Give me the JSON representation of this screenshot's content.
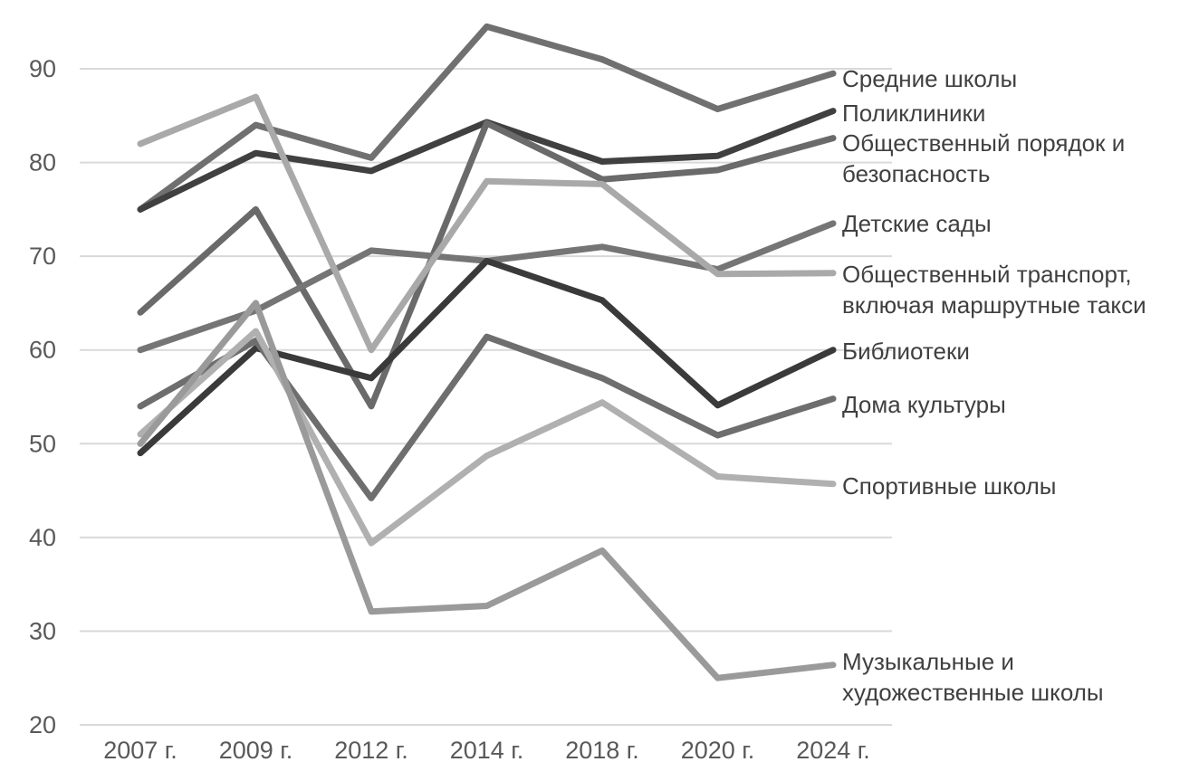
{
  "chart_data": {
    "type": "line",
    "title": "",
    "xlabel": "",
    "ylabel": "",
    "categories": [
      "2007 г.",
      "2009 г.",
      "2012 г.",
      "2014 г.",
      "2018 г.",
      "2020 г.",
      "2024 г."
    ],
    "ylim": [
      20,
      95
    ],
    "yticks": [
      20,
      30,
      40,
      50,
      60,
      70,
      80,
      90
    ],
    "grid": true,
    "legend": "right, labels at line ends",
    "series": [
      {
        "name": "Средние школы",
        "values": [
          75,
          84,
          80.5,
          94.5,
          91,
          85.7,
          89.5
        ],
        "color": "#707070",
        "label_lines": [
          "Средние школы"
        ]
      },
      {
        "name": "Поликлиники",
        "values": [
          75,
          81,
          79.1,
          84.3,
          80.1,
          80.7,
          85.5
        ],
        "color": "#404040",
        "label_lines": [
          "Поликлиники"
        ]
      },
      {
        "name": "Общественный порядок и безопасность",
        "values": [
          64,
          75,
          54,
          84.2,
          78.2,
          79.2,
          82.6
        ],
        "color": "#6a6a6a",
        "label_lines": [
          "Общественный порядок и",
          "безопасность"
        ]
      },
      {
        "name": "Детские сады",
        "values": [
          60,
          64.2,
          70.6,
          69.5,
          71,
          68.6,
          73.5
        ],
        "color": "#757575",
        "label_lines": [
          "Детские сады"
        ]
      },
      {
        "name": "Общественный транспорт, включая маршрутные такси",
        "values": [
          82,
          87,
          60,
          78,
          77.7,
          68.1,
          68.2
        ],
        "color": "#a9a9a9",
        "label_lines": [
          "Общественный транспорт,",
          "включая маршрутные такси"
        ]
      },
      {
        "name": "Библиотеки",
        "values": [
          49,
          60.2,
          57,
          69.5,
          65.3,
          54.1,
          60
        ],
        "color": "#3a3a3a",
        "label_lines": [
          "Библиотеки"
        ]
      },
      {
        "name": "Дома культуры",
        "values": [
          54,
          61,
          44.2,
          61.4,
          57,
          50.9,
          54.8
        ],
        "color": "#6e6e6e",
        "label_lines": [
          "Дома культуры"
        ]
      },
      {
        "name": "Спортивные школы",
        "values": [
          51,
          62,
          39.4,
          48.7,
          54.4,
          46.5,
          45.7
        ],
        "color": "#b0b0b0",
        "label_lines": [
          "Спортивные школы"
        ]
      },
      {
        "name": "Музыкальные и художественные школы",
        "values": [
          50,
          65,
          32.1,
          32.7,
          38.6,
          25,
          26.4
        ],
        "color": "#9a9a9a",
        "label_lines": [
          "Музыкальные и",
          "художественные школы"
        ]
      }
    ]
  }
}
